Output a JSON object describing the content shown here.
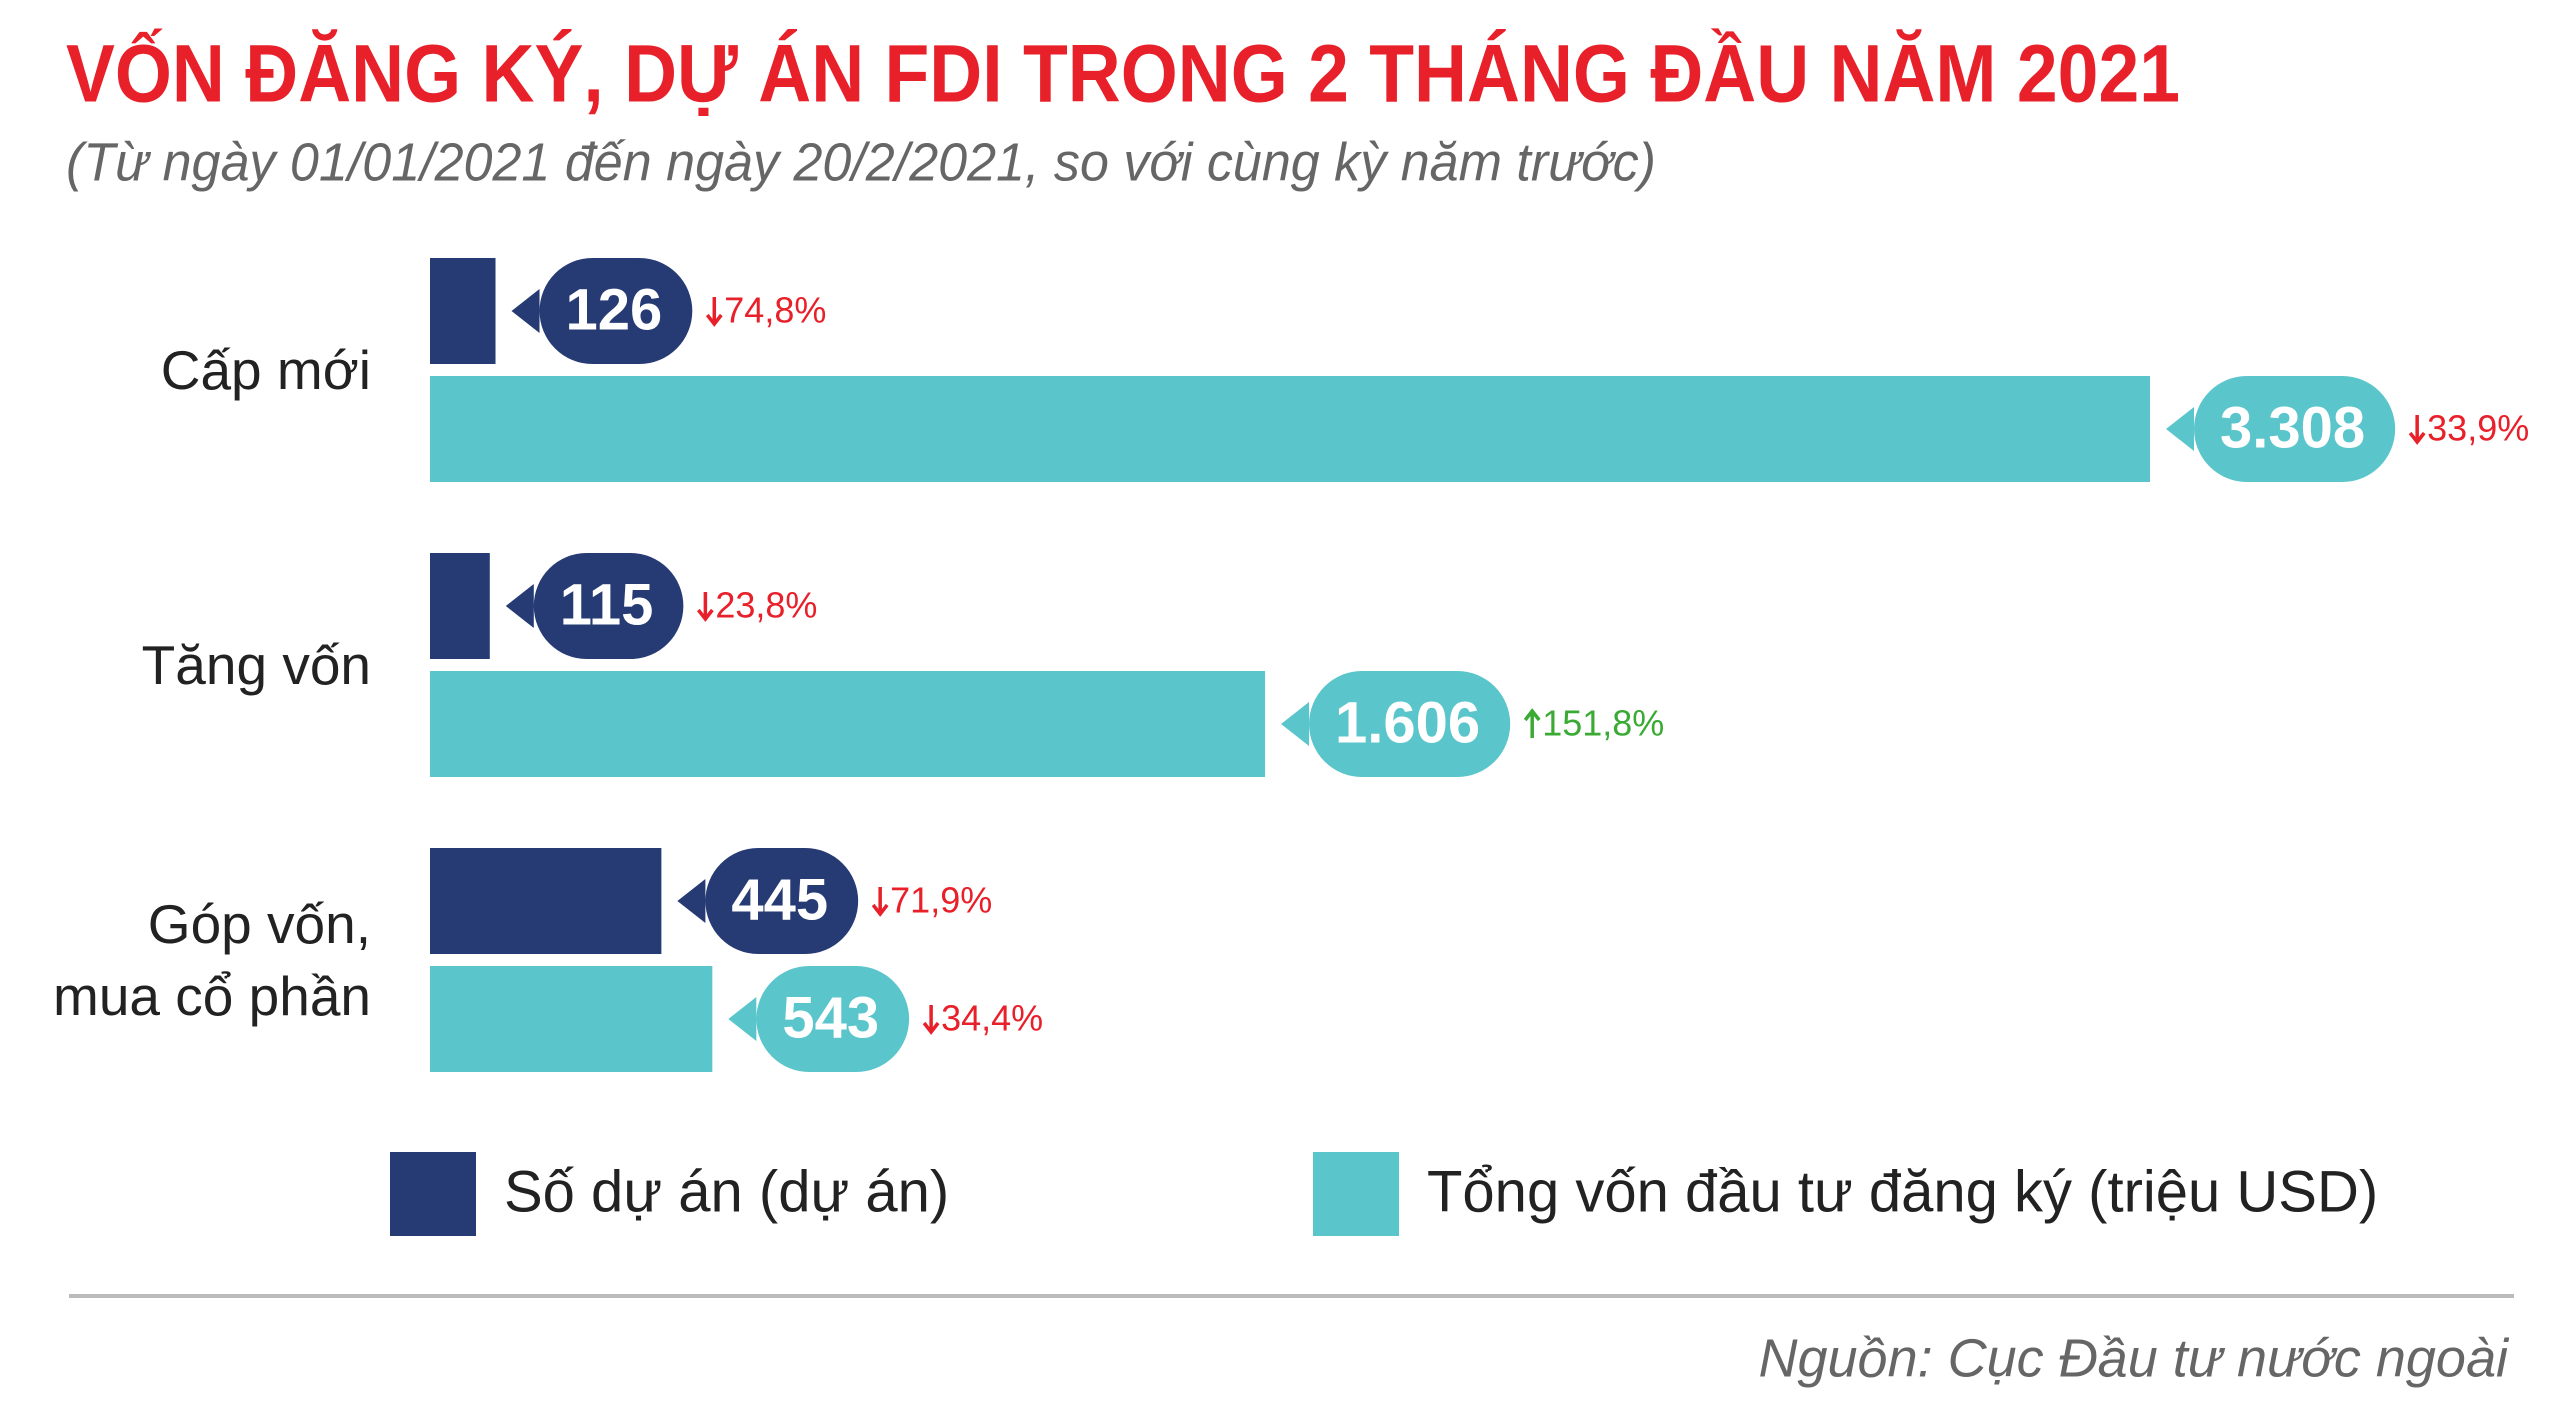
{
  "chart_data": {
    "type": "bar",
    "title": "VỐN ĐĂNG KÝ, DỰ ÁN FDI TRONG 2 THÁNG ĐẦU NĂM 2021",
    "subtitle": "(Từ ngày 01/01/2021 đến ngày 20/2/2021, so với cùng kỳ năm trước)",
    "categories": [
      "Cấp mới",
      "Tăng vốn",
      "Góp vốn, mua cổ phần"
    ],
    "series": [
      {
        "name": "Số dự án (dự án)",
        "color": "#263a73",
        "values": [
          126,
          115,
          445
        ],
        "value_labels": [
          "126",
          "115",
          "445"
        ],
        "changes": [
          -74.8,
          -23.8,
          -71.9
        ],
        "change_labels": [
          "74,8%",
          "23,8%",
          "71,9%"
        ]
      },
      {
        "name": "Tổng vốn đầu tư đăng ký (triệu USD)",
        "color": "#5bc5cc",
        "values": [
          3308,
          1606,
          543
        ],
        "value_labels": [
          "3.308",
          "1.606",
          "543"
        ],
        "changes": [
          -33.9,
          151.8,
          -34.4
        ],
        "change_labels": [
          "33,9%",
          "151,8%",
          "34,4%"
        ]
      }
    ],
    "up_color": "#3aaa35",
    "down_color": "#e8202a",
    "source": "Nguồn: Cục Đầu tư nước ngoài"
  }
}
